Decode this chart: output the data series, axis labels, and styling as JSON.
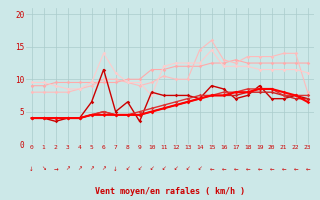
{
  "title": "",
  "xlabel": "Vent moyen/en rafales ( km/h )",
  "xlim": [
    -0.5,
    23.5
  ],
  "ylim": [
    0,
    21
  ],
  "yticks": [
    0,
    5,
    10,
    15,
    20
  ],
  "xticks": [
    0,
    1,
    2,
    3,
    4,
    5,
    6,
    7,
    8,
    9,
    10,
    11,
    12,
    13,
    14,
    15,
    16,
    17,
    18,
    19,
    20,
    21,
    22,
    23
  ],
  "bg_color": "#cce8e8",
  "grid_color": "#aacccc",
  "series": [
    {
      "color": "#ffaaaa",
      "lw": 0.8,
      "marker": "D",
      "ms": 1.8,
      "data": [
        9.0,
        9.0,
        9.5,
        9.5,
        9.5,
        9.5,
        9.5,
        9.5,
        10.0,
        10.0,
        11.5,
        11.5,
        12.0,
        12.0,
        12.0,
        12.5,
        12.5,
        13.0,
        12.5,
        12.5,
        12.5,
        12.5,
        12.5,
        12.5
      ]
    },
    {
      "color": "#ffbbbb",
      "lw": 0.8,
      "marker": "D",
      "ms": 1.8,
      "data": [
        8.0,
        8.0,
        8.0,
        8.0,
        8.5,
        9.0,
        10.0,
        10.0,
        9.5,
        9.0,
        9.5,
        10.5,
        10.0,
        10.0,
        14.5,
        16.0,
        13.0,
        12.5,
        13.5,
        13.5,
        13.5,
        14.0,
        14.0,
        8.0
      ]
    },
    {
      "color": "#ffcccc",
      "lw": 0.8,
      "marker": "D",
      "ms": 1.8,
      "data": [
        9.5,
        9.5,
        9.0,
        8.5,
        8.5,
        9.5,
        14.0,
        11.0,
        9.5,
        9.5,
        7.5,
        12.0,
        12.5,
        12.5,
        12.5,
        14.5,
        12.0,
        12.0,
        12.0,
        11.5,
        11.5,
        11.5,
        11.5,
        11.0
      ]
    },
    {
      "color": "#cc0000",
      "lw": 1.0,
      "marker": "D",
      "ms": 1.8,
      "data": [
        4.0,
        4.0,
        3.5,
        4.0,
        4.0,
        6.5,
        11.5,
        5.0,
        6.5,
        3.5,
        8.0,
        7.5,
        7.5,
        7.5,
        7.0,
        9.0,
        8.5,
        7.0,
        7.5,
        9.0,
        7.0,
        7.0,
        7.5,
        7.0
      ]
    },
    {
      "color": "#cc2222",
      "lw": 1.0,
      "marker": "D",
      "ms": 1.8,
      "data": [
        4.0,
        4.0,
        4.0,
        4.0,
        4.0,
        4.5,
        5.0,
        4.5,
        4.5,
        4.5,
        5.0,
        5.5,
        6.0,
        6.5,
        7.0,
        7.5,
        7.5,
        7.5,
        8.0,
        8.0,
        8.0,
        7.5,
        7.0,
        7.0
      ]
    },
    {
      "color": "#dd3333",
      "lw": 1.0,
      "marker": "D",
      "ms": 1.8,
      "data": [
        4.0,
        4.0,
        4.0,
        4.0,
        4.0,
        4.5,
        5.0,
        4.5,
        4.5,
        5.0,
        5.5,
        6.0,
        6.5,
        7.0,
        7.5,
        7.5,
        8.0,
        8.0,
        8.5,
        8.5,
        8.5,
        7.5,
        7.5,
        7.5
      ]
    },
    {
      "color": "#ff0000",
      "lw": 1.5,
      "marker": "D",
      "ms": 1.8,
      "data": [
        4.0,
        4.0,
        4.0,
        4.0,
        4.0,
        4.5,
        4.5,
        4.5,
        4.5,
        4.5,
        5.0,
        5.5,
        6.0,
        6.5,
        7.0,
        7.5,
        7.5,
        8.0,
        8.0,
        8.5,
        8.5,
        8.0,
        7.5,
        6.5
      ]
    }
  ],
  "wind_symbols": [
    "↓",
    "↘",
    "→",
    "↗",
    "↗",
    "↗",
    "↗",
    "↓",
    "↙",
    "↙",
    "↙",
    "↙",
    "↙",
    "↙",
    "↙",
    "←",
    "←",
    "←",
    "←",
    "←",
    "←",
    "←",
    "←",
    "←"
  ]
}
